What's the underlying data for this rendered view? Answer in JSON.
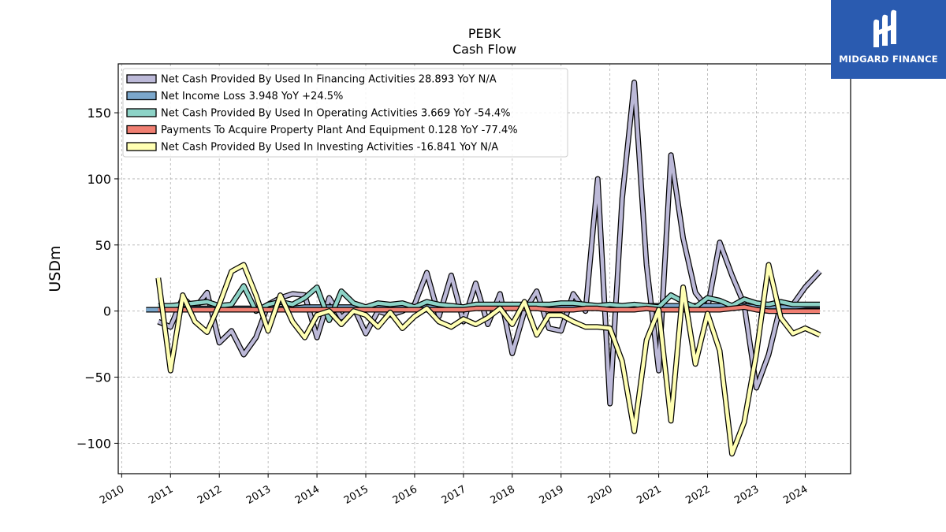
{
  "chart_data": {
    "type": "line",
    "title": "PEBK",
    "subtitle": "Cash Flow",
    "ylabel": "USDm",
    "xlabel": "",
    "ylim": [
      -123,
      187
    ],
    "xlim": [
      2009.93,
      2024.93
    ],
    "yticks": [
      -100,
      -50,
      0,
      50,
      100,
      150
    ],
    "ytick_labels": [
      "−100",
      "−50",
      "0",
      "50",
      "100",
      "150"
    ],
    "xticks": [
      2010,
      2011,
      2012,
      2013,
      2014,
      2015,
      2016,
      2017,
      2018,
      2019,
      2020,
      2021,
      2022,
      2023,
      2024
    ],
    "grid": true,
    "legend_position": "top-left",
    "series": [
      {
        "name": "Net Cash Provided By Used In Financing Activities  28.893 YoY N/A",
        "color": "#bcb9d8",
        "x": [
          2010.75,
          2011.0,
          2011.25,
          2011.5,
          2011.75,
          2012.0,
          2012.25,
          2012.5,
          2012.75,
          2013.0,
          2013.25,
          2013.5,
          2013.75,
          2014.0,
          2014.25,
          2014.5,
          2014.75,
          2015.0,
          2015.25,
          2015.5,
          2015.75,
          2016.0,
          2016.25,
          2016.5,
          2016.75,
          2017.0,
          2017.25,
          2017.5,
          2017.75,
          2018.0,
          2018.25,
          2018.5,
          2018.75,
          2019.0,
          2019.25,
          2019.5,
          2019.75,
          2020.0,
          2020.25,
          2020.5,
          2020.75,
          2021.0,
          2021.25,
          2021.5,
          2021.75,
          2022.0,
          2022.25,
          2022.5,
          2022.75,
          2023.0,
          2023.25,
          2023.5,
          2023.75,
          2024.0,
          2024.3
        ],
        "y": [
          -8,
          -12,
          10,
          2,
          14,
          -24,
          -15,
          -33,
          -20,
          5,
          10,
          13,
          12,
          -20,
          10,
          -5,
          3,
          -17,
          0,
          -3,
          0,
          5,
          29,
          -4,
          27,
          -8,
          21,
          -10,
          13,
          -32,
          0,
          15,
          -13,
          -15,
          13,
          0,
          100,
          -70,
          85,
          173,
          35,
          -45,
          118,
          55,
          14,
          2,
          52,
          27,
          5,
          -58,
          -33,
          5,
          5,
          18,
          30
        ]
      },
      {
        "name": "Net Income Loss  3.948 YoY +24.5%",
        "color": "#7ba7cc",
        "x": [
          2010.5,
          2010.75,
          2011.0,
          2011.25,
          2011.5,
          2011.75,
          2012.0,
          2012.25,
          2012.5,
          2012.75,
          2013.0,
          2013.25,
          2013.5,
          2013.75,
          2014.0,
          2014.25,
          2014.5,
          2014.75,
          2015.0,
          2015.25,
          2015.5,
          2015.75,
          2016.0,
          2016.25,
          2016.5,
          2016.75,
          2017.0,
          2017.25,
          2017.5,
          2017.75,
          2018.0,
          2018.25,
          2018.5,
          2018.75,
          2019.0,
          2019.25,
          2019.5,
          2019.75,
          2020.0,
          2020.25,
          2020.5,
          2020.75,
          2021.0,
          2021.25,
          2021.5,
          2021.75,
          2022.0,
          2022.25,
          2022.5,
          2022.75,
          2023.0,
          2023.25,
          2023.5,
          2023.75,
          2024.0,
          2024.3
        ],
        "y": [
          1,
          1,
          2,
          2,
          2,
          2,
          2,
          2,
          2,
          2,
          2,
          2,
          2,
          3,
          3,
          3,
          3,
          3,
          3,
          3,
          3,
          3,
          3,
          3,
          3,
          3,
          3,
          3,
          3,
          3,
          3,
          3,
          3,
          3,
          3,
          3,
          3,
          4,
          4,
          4,
          4,
          4,
          4,
          4,
          4,
          4,
          4,
          4,
          4,
          4,
          3,
          3,
          3,
          3,
          4,
          4
        ]
      },
      {
        "name": "Net Cash Provided By Used In Operating Activities  3.669 YoY -54.4%",
        "color": "#8dd3c7",
        "x": [
          2010.75,
          2011.0,
          2011.25,
          2011.5,
          2011.75,
          2012.0,
          2012.25,
          2012.5,
          2012.75,
          2013.0,
          2013.25,
          2013.5,
          2013.75,
          2014.0,
          2014.25,
          2014.5,
          2014.75,
          2015.0,
          2015.25,
          2015.5,
          2015.75,
          2016.0,
          2016.25,
          2016.5,
          2016.75,
          2017.0,
          2017.25,
          2017.5,
          2017.75,
          2018.0,
          2018.25,
          2018.5,
          2018.75,
          2019.0,
          2019.25,
          2019.5,
          2019.75,
          2020.0,
          2020.25,
          2020.5,
          2020.75,
          2021.0,
          2021.25,
          2021.5,
          2021.75,
          2022.0,
          2022.25,
          2022.5,
          2022.75,
          2023.0,
          2023.25,
          2023.5,
          2023.75,
          2024.0,
          2024.3
        ],
        "y": [
          4,
          4,
          5,
          6,
          7,
          4,
          5,
          19,
          0,
          5,
          7,
          5,
          10,
          18,
          -7,
          15,
          6,
          3,
          6,
          5,
          6,
          3,
          7,
          5,
          4,
          3,
          5,
          5,
          5,
          5,
          5,
          5,
          5,
          6,
          6,
          5,
          4,
          5,
          4,
          5,
          4,
          3,
          12,
          7,
          3,
          10,
          8,
          4,
          9,
          6,
          5,
          7,
          5,
          5,
          5
        ]
      },
      {
        "name": "Payments To Acquire Property Plant And Equipment  0.128 YoY -77.4%",
        "color": "#f07f72",
        "x": [
          2010.75,
          2011.0,
          2011.25,
          2011.5,
          2011.75,
          2012.0,
          2012.25,
          2012.5,
          2012.75,
          2013.0,
          2013.25,
          2013.5,
          2013.75,
          2014.0,
          2014.25,
          2014.5,
          2014.75,
          2015.0,
          2015.25,
          2015.5,
          2015.75,
          2016.0,
          2016.25,
          2016.5,
          2016.75,
          2017.0,
          2017.25,
          2017.5,
          2017.75,
          2018.0,
          2018.25,
          2018.5,
          2018.75,
          2019.0,
          2019.25,
          2019.5,
          2019.75,
          2020.0,
          2020.25,
          2020.5,
          2020.75,
          2021.0,
          2021.25,
          2021.5,
          2021.75,
          2022.0,
          2022.25,
          2022.5,
          2022.75,
          2023.0,
          2023.25,
          2023.5,
          2023.75,
          2024.0,
          2024.3
        ],
        "y": [
          1,
          1,
          1,
          1,
          1,
          1,
          1,
          1,
          1,
          1,
          1,
          1,
          1,
          1,
          1,
          1,
          1,
          1,
          1,
          1,
          1,
          1,
          1,
          1,
          1,
          1,
          2,
          2,
          2,
          2,
          2,
          2,
          1,
          1,
          1,
          2,
          2,
          1,
          1,
          1,
          2,
          1,
          1,
          1,
          1,
          1,
          1,
          2,
          3,
          1,
          0,
          0,
          0,
          0,
          0
        ]
      },
      {
        "name": "Net Cash Provided By Used In Investing Activities  -16.841 YoY N/A",
        "color": "#ffffb3",
        "x": [
          2010.75,
          2011.0,
          2011.25,
          2011.5,
          2011.75,
          2012.0,
          2012.25,
          2012.5,
          2012.75,
          2013.0,
          2013.25,
          2013.5,
          2013.75,
          2014.0,
          2014.25,
          2014.5,
          2014.75,
          2015.0,
          2015.25,
          2015.5,
          2015.75,
          2016.0,
          2016.25,
          2016.5,
          2016.75,
          2017.0,
          2017.25,
          2017.5,
          2017.75,
          2018.0,
          2018.25,
          2018.5,
          2018.75,
          2019.0,
          2019.25,
          2019.5,
          2019.75,
          2020.0,
          2020.25,
          2020.5,
          2020.75,
          2021.0,
          2021.25,
          2021.5,
          2021.75,
          2022.0,
          2022.25,
          2022.5,
          2022.75,
          2023.0,
          2023.25,
          2023.5,
          2023.75,
          2024.0,
          2024.3
        ],
        "y": [
          25,
          -45,
          12,
          -8,
          -16,
          5,
          30,
          35,
          12,
          -15,
          12,
          -8,
          -20,
          -3,
          0,
          -10,
          0,
          -3,
          -12,
          -1,
          -13,
          -4,
          2,
          -8,
          -12,
          -6,
          -10,
          -5,
          2,
          -10,
          7,
          -18,
          -3,
          -3,
          -8,
          -12,
          -12,
          -13,
          -38,
          -91,
          -22,
          1,
          -83,
          18,
          -40,
          -2,
          -30,
          -108,
          -84,
          -32,
          35,
          -5,
          -17,
          -13,
          -18
        ]
      }
    ]
  },
  "logo": {
    "name": "MIDGARD FINANCE",
    "color": "#2a5bb0"
  }
}
